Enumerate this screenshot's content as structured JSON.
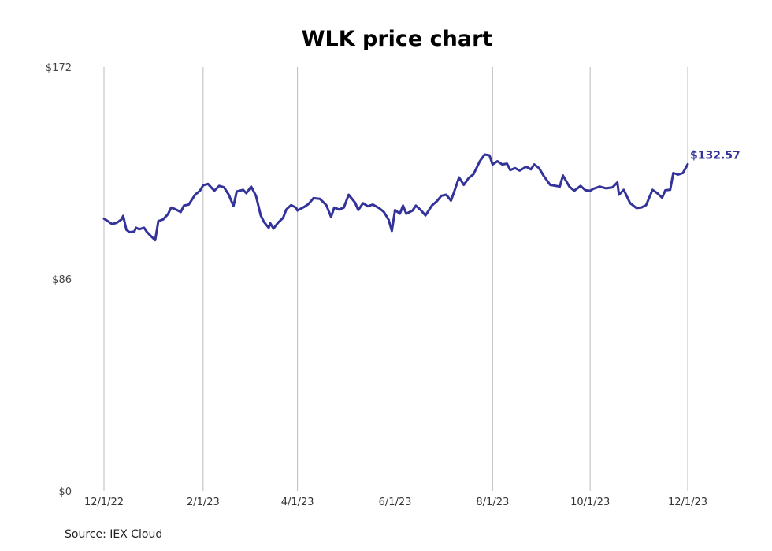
{
  "chart_data": {
    "type": "line",
    "title": "WLK price chart",
    "xlabel": "",
    "ylabel": "",
    "ylim": [
      0,
      172
    ],
    "yticks": [
      {
        "value": 0,
        "label": "$0"
      },
      {
        "value": 86,
        "label": "$86"
      },
      {
        "value": 172,
        "label": "$172"
      }
    ],
    "xticks": [
      {
        "date": "2022-12-01",
        "label": "12/1/22"
      },
      {
        "date": "2023-02-01",
        "label": "2/1/23"
      },
      {
        "date": "2023-04-01",
        "label": "4/1/23"
      },
      {
        "date": "2023-06-01",
        "label": "6/1/23"
      },
      {
        "date": "2023-08-01",
        "label": "8/1/23"
      },
      {
        "date": "2023-10-01",
        "label": "10/1/23"
      },
      {
        "date": "2023-12-01",
        "label": "12/1/23"
      }
    ],
    "grid": {
      "x": true,
      "y": false
    },
    "last_value_label": "$132.57",
    "source": "Source: IEX Cloud",
    "colors": {
      "line": "#333399",
      "grid": "#bbbbbb"
    },
    "series": [
      {
        "points": [
          [
            "2022-12-01",
            110.5
          ],
          [
            "2022-12-04",
            109.2
          ],
          [
            "2022-12-06",
            108.3
          ],
          [
            "2022-12-09",
            108.8
          ],
          [
            "2022-12-12",
            110.2
          ],
          [
            "2022-12-13",
            111.6
          ],
          [
            "2022-12-15",
            106.0
          ],
          [
            "2022-12-17",
            105.0
          ],
          [
            "2022-12-20",
            105.3
          ],
          [
            "2022-12-21",
            106.8
          ],
          [
            "2022-12-23",
            106.2
          ],
          [
            "2022-12-26",
            106.8
          ],
          [
            "2022-12-28",
            105.0
          ],
          [
            "2022-12-31",
            103.0
          ],
          [
            "2023-01-02",
            101.8
          ],
          [
            "2023-01-04",
            109.5
          ],
          [
            "2023-01-07",
            110.2
          ],
          [
            "2023-01-10",
            112.3
          ],
          [
            "2023-01-12",
            115.0
          ],
          [
            "2023-01-15",
            114.2
          ],
          [
            "2023-01-18",
            113.2
          ],
          [
            "2023-01-20",
            115.8
          ],
          [
            "2023-01-23",
            116.2
          ],
          [
            "2023-01-27",
            120.2
          ],
          [
            "2023-01-30",
            121.8
          ],
          [
            "2023-02-01",
            124.0
          ],
          [
            "2023-02-04",
            124.6
          ],
          [
            "2023-02-08",
            121.8
          ],
          [
            "2023-02-11",
            123.8
          ],
          [
            "2023-02-14",
            123.2
          ],
          [
            "2023-02-17",
            120.2
          ],
          [
            "2023-02-20",
            115.6
          ],
          [
            "2023-02-22",
            121.5
          ],
          [
            "2023-02-26",
            122.2
          ],
          [
            "2023-02-28",
            120.8
          ],
          [
            "2023-03-03",
            123.5
          ],
          [
            "2023-03-06",
            119.8
          ],
          [
            "2023-03-09",
            111.8
          ],
          [
            "2023-03-11",
            109.2
          ],
          [
            "2023-03-14",
            106.8
          ],
          [
            "2023-03-15",
            108.6
          ],
          [
            "2023-03-17",
            106.5
          ],
          [
            "2023-03-20",
            109.0
          ],
          [
            "2023-03-23",
            110.8
          ],
          [
            "2023-03-25",
            114.2
          ],
          [
            "2023-03-28",
            116.0
          ],
          [
            "2023-03-31",
            115.0
          ],
          [
            "2023-04-01",
            113.8
          ],
          [
            "2023-04-05",
            115.2
          ],
          [
            "2023-04-08",
            116.5
          ],
          [
            "2023-04-11",
            118.8
          ],
          [
            "2023-04-15",
            118.5
          ],
          [
            "2023-04-19",
            116.0
          ],
          [
            "2023-04-22",
            111.2
          ],
          [
            "2023-04-24",
            115.0
          ],
          [
            "2023-04-27",
            114.2
          ],
          [
            "2023-04-30",
            115.0
          ],
          [
            "2023-05-03",
            120.2
          ],
          [
            "2023-05-07",
            117.0
          ],
          [
            "2023-05-09",
            114.0
          ],
          [
            "2023-05-12",
            116.8
          ],
          [
            "2023-05-15",
            115.5
          ],
          [
            "2023-05-18",
            116.2
          ],
          [
            "2023-05-22",
            114.8
          ],
          [
            "2023-05-25",
            113.2
          ],
          [
            "2023-05-28",
            110.0
          ],
          [
            "2023-05-30",
            105.5
          ],
          [
            "2023-06-01",
            114.0
          ],
          [
            "2023-06-04",
            112.5
          ],
          [
            "2023-06-06",
            115.8
          ],
          [
            "2023-06-08",
            112.5
          ],
          [
            "2023-06-12",
            113.8
          ],
          [
            "2023-06-14",
            115.8
          ],
          [
            "2023-06-17",
            114.0
          ],
          [
            "2023-06-20",
            111.8
          ],
          [
            "2023-06-24",
            115.8
          ],
          [
            "2023-06-27",
            117.5
          ],
          [
            "2023-06-30",
            119.8
          ],
          [
            "2023-07-03",
            120.2
          ],
          [
            "2023-07-06",
            117.8
          ],
          [
            "2023-07-08",
            121.5
          ],
          [
            "2023-07-11",
            127.2
          ],
          [
            "2023-07-14",
            124.2
          ],
          [
            "2023-07-17",
            127.0
          ],
          [
            "2023-07-20",
            128.5
          ],
          [
            "2023-07-24",
            133.8
          ],
          [
            "2023-07-27",
            136.5
          ],
          [
            "2023-07-30",
            136.2
          ],
          [
            "2023-08-01",
            132.5
          ],
          [
            "2023-08-04",
            133.8
          ],
          [
            "2023-08-07",
            132.5
          ],
          [
            "2023-08-10",
            132.8
          ],
          [
            "2023-08-12",
            130.2
          ],
          [
            "2023-08-15",
            131.0
          ],
          [
            "2023-08-18",
            130.0
          ],
          [
            "2023-08-22",
            131.6
          ],
          [
            "2023-08-25",
            130.5
          ],
          [
            "2023-08-27",
            132.5
          ],
          [
            "2023-08-30",
            131.0
          ],
          [
            "2023-09-02",
            127.8
          ],
          [
            "2023-09-06",
            124.2
          ],
          [
            "2023-09-12",
            123.5
          ],
          [
            "2023-09-14",
            128.0
          ],
          [
            "2023-09-18",
            123.5
          ],
          [
            "2023-09-21",
            121.8
          ],
          [
            "2023-09-25",
            123.8
          ],
          [
            "2023-09-28",
            122.0
          ],
          [
            "2023-10-01",
            121.8
          ],
          [
            "2023-10-03",
            122.6
          ],
          [
            "2023-10-07",
            123.5
          ],
          [
            "2023-10-11",
            122.8
          ],
          [
            "2023-10-15",
            123.2
          ],
          [
            "2023-10-18",
            125.2
          ],
          [
            "2023-10-19",
            120.2
          ],
          [
            "2023-10-22",
            122.2
          ],
          [
            "2023-10-26",
            116.8
          ],
          [
            "2023-10-30",
            114.8
          ],
          [
            "2023-11-02",
            115.0
          ],
          [
            "2023-11-05",
            116.0
          ],
          [
            "2023-11-09",
            122.2
          ],
          [
            "2023-11-12",
            120.8
          ],
          [
            "2023-11-15",
            119.0
          ],
          [
            "2023-11-17",
            122.0
          ],
          [
            "2023-11-20",
            122.2
          ],
          [
            "2023-11-22",
            129.0
          ],
          [
            "2023-11-25",
            128.4
          ],
          [
            "2023-11-28",
            129.0
          ],
          [
            "2023-12-01",
            132.57
          ]
        ]
      }
    ]
  }
}
